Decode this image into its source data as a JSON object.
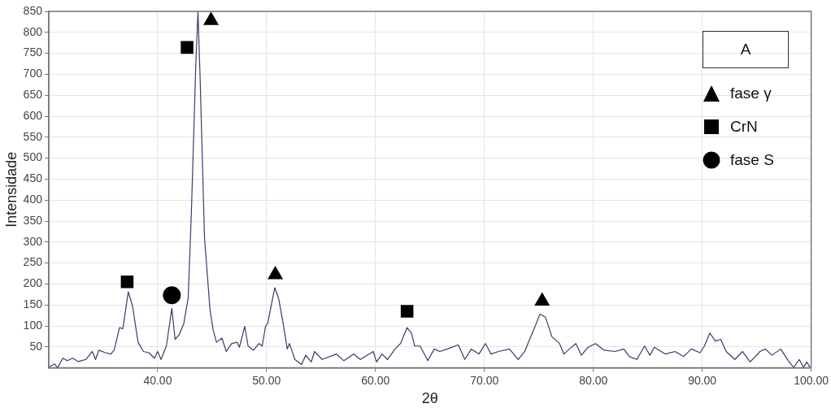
{
  "chart_data": {
    "type": "line",
    "xlabel": "2θ",
    "ylabel": "Intensidade",
    "legend_title": "A",
    "legend": "top right",
    "grid": true,
    "marker": "none",
    "line_style": "solid",
    "xlim": [
      30,
      100
    ],
    "ylim": [
      0,
      850
    ],
    "xticks": [
      {
        "value": 40,
        "label": "40.00"
      },
      {
        "value": 50,
        "label": "50.00"
      },
      {
        "value": 60,
        "label": "60.00"
      },
      {
        "value": 70,
        "label": "70.00"
      },
      {
        "value": 80,
        "label": "80.00"
      },
      {
        "value": 90,
        "label": "90.00"
      },
      {
        "value": 100,
        "label": "100.00"
      }
    ],
    "yticks": [
      50,
      100,
      150,
      200,
      250,
      300,
      350,
      400,
      450,
      500,
      550,
      600,
      650,
      700,
      750,
      800,
      850
    ],
    "series": [
      {
        "color": "#3a3a6a",
        "x": [
          30,
          30.55,
          30.8,
          31.3,
          31.7,
          32.2,
          32.7,
          33.4,
          34.0,
          34.3,
          34.6,
          35.2,
          35.7,
          36.0,
          36.5,
          36.8,
          37.3,
          37.7,
          37.9,
          38.2,
          38.7,
          39.2,
          39.7,
          40.0,
          40.3,
          40.8,
          41.3,
          41.6,
          42.0,
          42.4,
          42.8,
          43.1,
          43.5,
          43.7,
          43.9,
          44.3,
          44.8,
          45.1,
          45.4,
          45.9,
          46.3,
          46.8,
          47.3,
          47.5,
          48.0,
          48.3,
          48.8,
          49.3,
          49.6,
          49.9,
          50.1,
          50.75,
          51.1,
          51.5,
          51.9,
          52.1,
          52.6,
          53.2,
          53.6,
          54.1,
          54.4,
          55.1,
          56.4,
          57.1,
          58.0,
          58.6,
          59.8,
          60.1,
          60.6,
          61.1,
          61.8,
          62.3,
          62.9,
          63.3,
          63.6,
          64.1,
          64.8,
          65.4,
          65.9,
          66.6,
          67.6,
          68.2,
          68.8,
          69.5,
          70.1,
          70.6,
          71.3,
          72.3,
          73.1,
          73.7,
          74.2,
          74.7,
          75.1,
          75.6,
          76.2,
          76.9,
          77.3,
          77.8,
          78.4,
          78.9,
          79.5,
          80.2,
          81.0,
          82.0,
          82.8,
          83.3,
          84.0,
          84.7,
          85.2,
          85.6,
          86.6,
          87.5,
          88.3,
          89.0,
          89.8,
          90.2,
          90.7,
          91.2,
          91.7,
          92.2,
          93.0,
          93.7,
          94.4,
          95.3,
          95.8,
          96.4,
          97.2,
          97.9,
          98.4,
          98.9,
          99.3,
          99.6,
          99.9
        ],
        "values": [
          2,
          9,
          0,
          23,
          17,
          23,
          15,
          20,
          39,
          20,
          42,
          36,
          33,
          42,
          96,
          93,
          181,
          147,
          112,
          61,
          39,
          36,
          23,
          39,
          20,
          52,
          142,
          68,
          80,
          106,
          166,
          374,
          722,
          850,
          690,
          311,
          140,
          90,
          61,
          71,
          39,
          58,
          61,
          49,
          99,
          52,
          42,
          58,
          52,
          99,
          106,
          191,
          166,
          109,
          45,
          58,
          20,
          8,
          30,
          14,
          39,
          20,
          33,
          17,
          33,
          20,
          39,
          14,
          33,
          20,
          45,
          58,
          96,
          83,
          52,
          52,
          17,
          45,
          39,
          45,
          55,
          20,
          45,
          33,
          58,
          33,
          39,
          45,
          20,
          39,
          71,
          102,
          128,
          121,
          74,
          58,
          33,
          45,
          58,
          30,
          49,
          58,
          42,
          39,
          45,
          27,
          20,
          52,
          30,
          49,
          33,
          39,
          27,
          45,
          36,
          52,
          83,
          64,
          68,
          39,
          20,
          39,
          14,
          39,
          45,
          30,
          45,
          17,
          1,
          20,
          1,
          14,
          1
        ]
      },
      {
        "type": "scatter",
        "name": "fase γ",
        "color": "#000000",
        "marker": "triangle",
        "x": [
          44.9,
          50.8,
          75.3
        ],
        "values": [
          828,
          222,
          159
        ]
      },
      {
        "type": "scatter",
        "name": "CrN",
        "color": "#000000",
        "marker": "square",
        "x": [
          42.7,
          37.2,
          62.9
        ],
        "values": [
          764,
          205,
          135
        ]
      },
      {
        "type": "scatter",
        "name": "fase S",
        "color": "#000000",
        "marker": "circle",
        "x": [
          41.3
        ],
        "values": [
          173
        ]
      }
    ]
  }
}
